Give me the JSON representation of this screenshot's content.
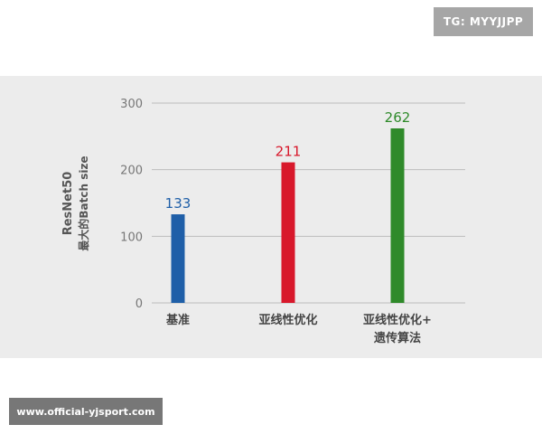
{
  "watermark_top": "TG: MYYJJPP",
  "watermark_bottom": "www.official-yjsport.com",
  "chart_data": {
    "type": "bar",
    "title": "",
    "ylabel_line1": "ResNet50",
    "ylabel_line2": "最大的Batch size",
    "xlabel": "",
    "ylim": [
      0,
      300
    ],
    "yticks": [
      0,
      100,
      200,
      300
    ],
    "grid": true,
    "categories": [
      [
        "基准"
      ],
      [
        "亚线性优化"
      ],
      [
        "亚线性优化+",
        "遗传算法"
      ]
    ],
    "values": [
      133,
      211,
      262
    ],
    "data_labels": [
      "133",
      "211",
      "262"
    ],
    "colors": [
      "#1f5fa8",
      "#d8182b",
      "#2f8a2a"
    ]
  }
}
